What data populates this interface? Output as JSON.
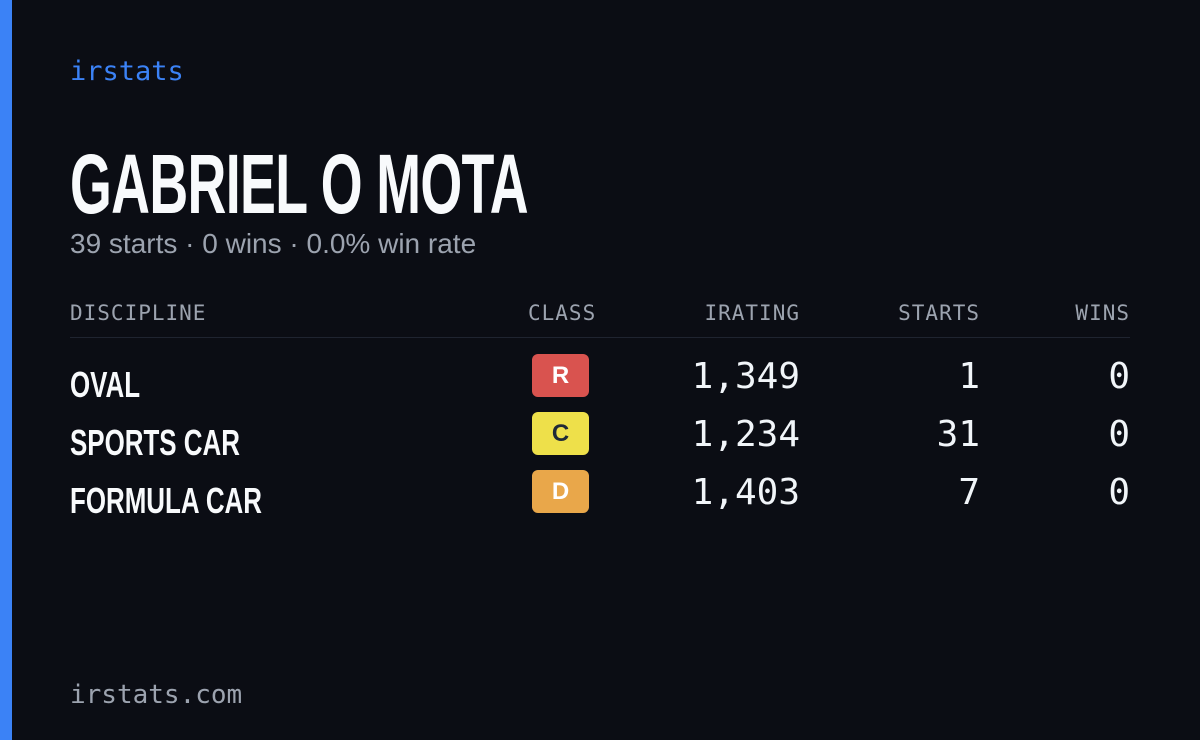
{
  "brand": "irstats",
  "header": {
    "title": "GABRIEL O MOTA",
    "subtitle": "39 starts · 0 wins · 0.0% win rate"
  },
  "table": {
    "columns": [
      "DISCIPLINE",
      "CLASS",
      "IRATING",
      "STARTS",
      "WINS"
    ],
    "rows": [
      [
        "OVAL",
        "R",
        "1,349",
        "1",
        "0"
      ],
      [
        "SPORTS CAR",
        "C",
        "1,234",
        "31",
        "0"
      ],
      [
        "FORMULA CAR",
        "D",
        "1,403",
        "7",
        "0"
      ]
    ]
  },
  "footer": "irstats.com"
}
